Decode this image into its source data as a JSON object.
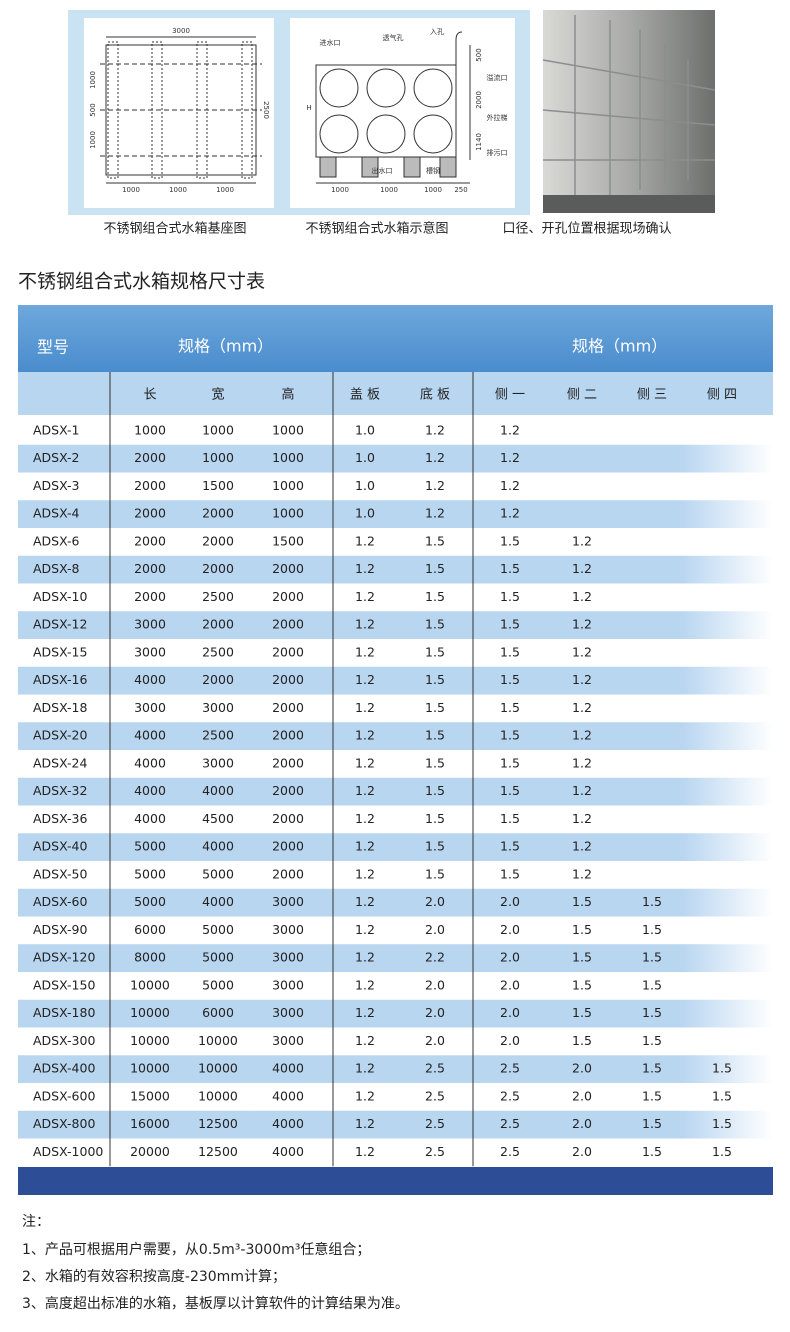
{
  "captions": [
    "不锈钢组合式水箱基座图",
    "不锈钢组合式水箱示意图",
    "口径、开孔位置根据现场确认"
  ],
  "diagrams": {
    "base": {
      "labels": [
        "3000",
        "1000",
        "500",
        "1000",
        "2500",
        "1000",
        "1000",
        "1000"
      ]
    },
    "schematic": {
      "labels": [
        "进水口",
        "透气孔",
        "入孔",
        "溢流口",
        "外拉梯",
        "排污口",
        "出水口",
        "槽钢",
        "H",
        "500",
        "2000",
        "1140",
        "1000",
        "1000",
        "1000",
        "250"
      ]
    }
  },
  "title": "不锈钢组合式水箱规格尺寸表",
  "table": {
    "header": [
      "型号",
      "规格（mm）",
      "规格（mm）"
    ],
    "subheader": [
      "长",
      "宽",
      "高",
      "盖 板",
      "底 板",
      "侧 一",
      "侧 二",
      "侧 三",
      "侧 四"
    ],
    "rows": [
      [
        "ADSX-1",
        "1000",
        "1000",
        "1000",
        "1.0",
        "1.2",
        "1.2"
      ],
      [
        "ADSX-2",
        "2000",
        "1000",
        "1000",
        "1.0",
        "1.2",
        "1.2"
      ],
      [
        "ADSX-3",
        "2000",
        "1500",
        "1000",
        "1.0",
        "1.2",
        "1.2"
      ],
      [
        "ADSX-4",
        "2000",
        "2000",
        "1000",
        "1.0",
        "1.2",
        "1.2"
      ],
      [
        "ADSX-6",
        "2000",
        "2000",
        "1500",
        "1.2",
        "1.5",
        "1.5",
        "1.2"
      ],
      [
        "ADSX-8",
        "2000",
        "2000",
        "2000",
        "1.2",
        "1.5",
        "1.5",
        "1.2"
      ],
      [
        "ADSX-10",
        "2000",
        "2500",
        "2000",
        "1.2",
        "1.5",
        "1.5",
        "1.2"
      ],
      [
        "ADSX-12",
        "3000",
        "2000",
        "2000",
        "1.2",
        "1.5",
        "1.5",
        "1.2"
      ],
      [
        "ADSX-15",
        "3000",
        "2500",
        "2000",
        "1.2",
        "1.5",
        "1.5",
        "1.2"
      ],
      [
        "ADSX-16",
        "4000",
        "2000",
        "2000",
        "1.2",
        "1.5",
        "1.5",
        "1.2"
      ],
      [
        "ADSX-18",
        "3000",
        "3000",
        "2000",
        "1.2",
        "1.5",
        "1.5",
        "1.2"
      ],
      [
        "ADSX-20",
        "4000",
        "2500",
        "2000",
        "1.2",
        "1.5",
        "1.5",
        "1.2"
      ],
      [
        "ADSX-24",
        "4000",
        "3000",
        "2000",
        "1.2",
        "1.5",
        "1.5",
        "1.2"
      ],
      [
        "ADSX-32",
        "4000",
        "4000",
        "2000",
        "1.2",
        "1.5",
        "1.5",
        "1.2"
      ],
      [
        "ADSX-36",
        "4000",
        "4500",
        "2000",
        "1.2",
        "1.5",
        "1.5",
        "1.2"
      ],
      [
        "ADSX-40",
        "5000",
        "4000",
        "2000",
        "1.2",
        "1.5",
        "1.5",
        "1.2"
      ],
      [
        "ADSX-50",
        "5000",
        "5000",
        "2000",
        "1.2",
        "1.5",
        "1.5",
        "1.2"
      ],
      [
        "ADSX-60",
        "5000",
        "4000",
        "3000",
        "1.2",
        "2.0",
        "2.0",
        "1.5",
        "1.5"
      ],
      [
        "ADSX-90",
        "6000",
        "5000",
        "3000",
        "1.2",
        "2.0",
        "2.0",
        "1.5",
        "1.5"
      ],
      [
        "ADSX-120",
        "8000",
        "5000",
        "3000",
        "1.2",
        "2.2",
        "2.0",
        "1.5",
        "1.5"
      ],
      [
        "ADSX-150",
        "10000",
        "5000",
        "3000",
        "1.2",
        "2.0",
        "2.0",
        "1.5",
        "1.5"
      ],
      [
        "ADSX-180",
        "10000",
        "6000",
        "3000",
        "1.2",
        "2.0",
        "2.0",
        "1.5",
        "1.5"
      ],
      [
        "ADSX-300",
        "10000",
        "10000",
        "3000",
        "1.2",
        "2.0",
        "2.0",
        "1.5",
        "1.5"
      ],
      [
        "ADSX-400",
        "10000",
        "10000",
        "4000",
        "1.2",
        "2.5",
        "2.5",
        "2.0",
        "1.5",
        "1.5"
      ],
      [
        "ADSX-600",
        "15000",
        "10000",
        "4000",
        "1.2",
        "2.5",
        "2.5",
        "2.0",
        "1.5",
        "1.5"
      ],
      [
        "ADSX-800",
        "16000",
        "12500",
        "4000",
        "1.2",
        "2.5",
        "2.5",
        "2.0",
        "1.5",
        "1.5"
      ],
      [
        "ADSX-1000",
        "20000",
        "12500",
        "4000",
        "1.2",
        "2.5",
        "2.5",
        "2.0",
        "1.5",
        "1.5"
      ]
    ]
  },
  "notes": {
    "heading": "注：",
    "items": [
      "1、产品可根据用户需要，从0.5m³-3000m³任意组合；",
      "2、水箱的有效容积按高度-230mm计算；",
      "3、高度超出标准的水箱，基板厚以计算软件的计算结果为准。"
    ]
  }
}
